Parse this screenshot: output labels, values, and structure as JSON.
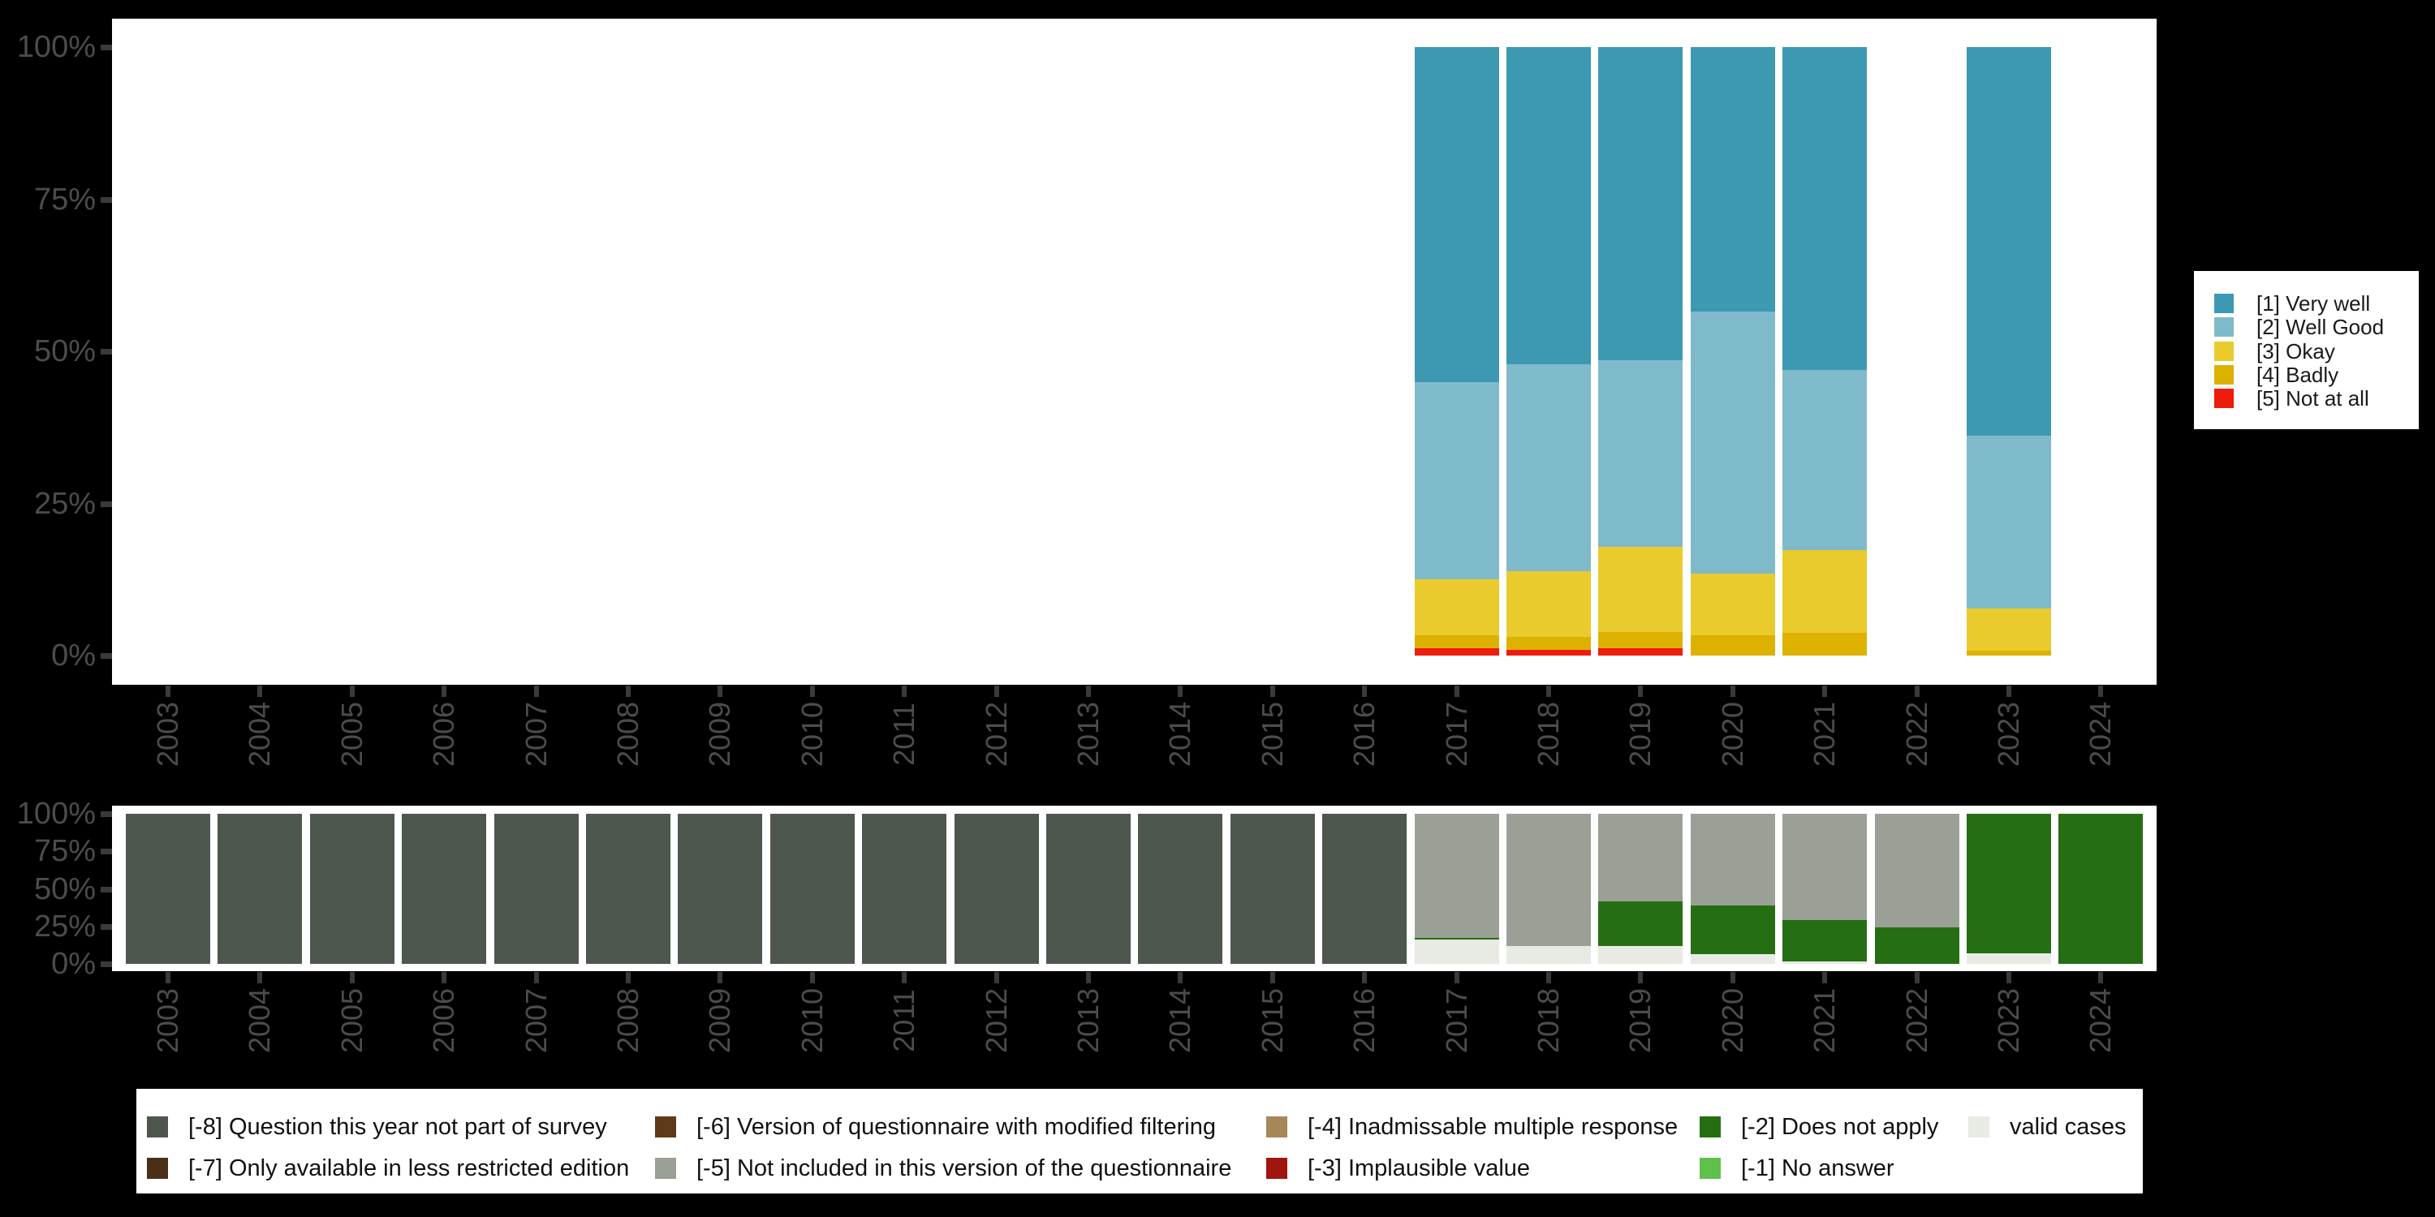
{
  "page": {
    "background": "#000000",
    "panel_background": "#ffffff"
  },
  "years": [
    "2003",
    "2004",
    "2005",
    "2006",
    "2007",
    "2008",
    "2009",
    "2010",
    "2011",
    "2012",
    "2013",
    "2014",
    "2015",
    "2016",
    "2017",
    "2018",
    "2019",
    "2020",
    "2021",
    "2022",
    "2023",
    "2024"
  ],
  "y_axis_ticks": [
    "0%",
    "25%",
    "50%",
    "75%",
    "100%"
  ],
  "axis_text_color": "#4c4c4c",
  "tick_color": "#3a3a3a",
  "chart_data": [
    {
      "type": "bar",
      "stacked": true,
      "title": "",
      "xlabel": "",
      "ylabel": "",
      "categories": [
        "2003",
        "2004",
        "2005",
        "2006",
        "2007",
        "2008",
        "2009",
        "2010",
        "2011",
        "2012",
        "2013",
        "2014",
        "2015",
        "2016",
        "2017",
        "2018",
        "2019",
        "2020",
        "2021",
        "2022",
        "2023",
        "2024"
      ],
      "ylim": [
        0,
        100
      ],
      "grid": false,
      "legend_position": "right",
      "series": [
        {
          "name": "[5] Not at all",
          "color": "#ed1c0c",
          "values": [
            null,
            null,
            null,
            null,
            null,
            null,
            null,
            null,
            null,
            null,
            null,
            null,
            null,
            null,
            1.2,
            1.0,
            1.2,
            null,
            null,
            null,
            null,
            null
          ]
        },
        {
          "name": "[4] Badly",
          "color": "#ddb100",
          "values": [
            null,
            null,
            null,
            null,
            null,
            null,
            null,
            null,
            null,
            null,
            null,
            null,
            null,
            null,
            2.2,
            2.1,
            2.7,
            3.4,
            3.8,
            null,
            0.8,
            null
          ]
        },
        {
          "name": "[3] Okay",
          "color": "#e9cb2e",
          "values": [
            null,
            null,
            null,
            null,
            null,
            null,
            null,
            null,
            null,
            null,
            null,
            null,
            null,
            null,
            9.2,
            10.8,
            14.0,
            10.1,
            13.6,
            null,
            7.0,
            null
          ]
        },
        {
          "name": "[2] Well Good",
          "color": "#7fbacb",
          "values": [
            null,
            null,
            null,
            null,
            null,
            null,
            null,
            null,
            null,
            null,
            null,
            null,
            null,
            null,
            32.3,
            34.0,
            30.7,
            43.1,
            29.5,
            null,
            28.4,
            null
          ]
        },
        {
          "name": "[1] Very well",
          "color": "#3d99b2",
          "values": [
            null,
            null,
            null,
            null,
            null,
            null,
            null,
            null,
            null,
            null,
            null,
            null,
            null,
            null,
            55.1,
            52.1,
            51.4,
            43.4,
            53.1,
            null,
            63.8,
            null
          ]
        }
      ],
      "legend_items": [
        {
          "label": "[1] Very well",
          "color": "#3d99b2"
        },
        {
          "label": "[2] Well Good",
          "color": "#7fbacb"
        },
        {
          "label": "[3] Okay",
          "color": "#e9cb2e"
        },
        {
          "label": "[4] Badly",
          "color": "#ddb100"
        },
        {
          "label": "[5] Not at all",
          "color": "#ed1c0c"
        }
      ]
    },
    {
      "type": "bar",
      "stacked": true,
      "title": "",
      "xlabel": "",
      "ylabel": "",
      "categories": [
        "2003",
        "2004",
        "2005",
        "2006",
        "2007",
        "2008",
        "2009",
        "2010",
        "2011",
        "2012",
        "2013",
        "2014",
        "2015",
        "2016",
        "2017",
        "2018",
        "2019",
        "2020",
        "2021",
        "2022",
        "2023",
        "2024"
      ],
      "ylim": [
        0,
        100
      ],
      "grid": false,
      "legend_position": "bottom",
      "series": [
        {
          "name": "valid cases",
          "color": "#e7ebe3",
          "values": [
            null,
            null,
            null,
            null,
            null,
            null,
            null,
            null,
            null,
            null,
            null,
            null,
            null,
            null,
            16.2,
            11.9,
            11.9,
            6.5,
            1.5,
            null,
            7.0,
            null
          ]
        },
        {
          "name": "[-2] Does not apply",
          "color": "#266e13",
          "values": [
            null,
            null,
            null,
            null,
            null,
            null,
            null,
            null,
            null,
            null,
            null,
            null,
            null,
            null,
            1.0,
            null,
            29.7,
            32.4,
            27.8,
            24.3,
            93.0,
            100
          ]
        },
        {
          "name": "[-5] Not included in this version of the questionnaire",
          "color": "#9aa096",
          "values": [
            null,
            null,
            null,
            null,
            null,
            null,
            null,
            null,
            null,
            null,
            null,
            null,
            null,
            null,
            82.8,
            88.1,
            58.4,
            61.1,
            70.7,
            75.7,
            null,
            null
          ]
        },
        {
          "name": "[-8] Question this year not part of survey",
          "color": "#4e574e",
          "values": [
            100,
            100,
            100,
            100,
            100,
            100,
            100,
            100,
            100,
            100,
            100,
            100,
            100,
            100,
            null,
            null,
            null,
            null,
            null,
            null,
            null,
            null
          ]
        }
      ],
      "legend_items": [
        {
          "label": "[-8] Question this year not part of survey",
          "color": "#4e574e"
        },
        {
          "label": "[-7] Only available in less restricted edition",
          "color": "#4a2f16"
        },
        {
          "label": "[-6] Version of questionnaire with modified filtering",
          "color": "#5e3a19"
        },
        {
          "label": "[-5] Not included in this version of the questionnaire",
          "color": "#9aa096"
        },
        {
          "label": "[-4] Inadmissable multiple response",
          "color": "#a68757"
        },
        {
          "label": "[-3] Implausible value",
          "color": "#a1150f"
        },
        {
          "label": "[-2] Does not apply",
          "color": "#266e13"
        },
        {
          "label": "[-1] No answer",
          "color": "#5ec14b"
        },
        {
          "label": "valid cases",
          "color": "#e7ebe3"
        }
      ]
    }
  ]
}
